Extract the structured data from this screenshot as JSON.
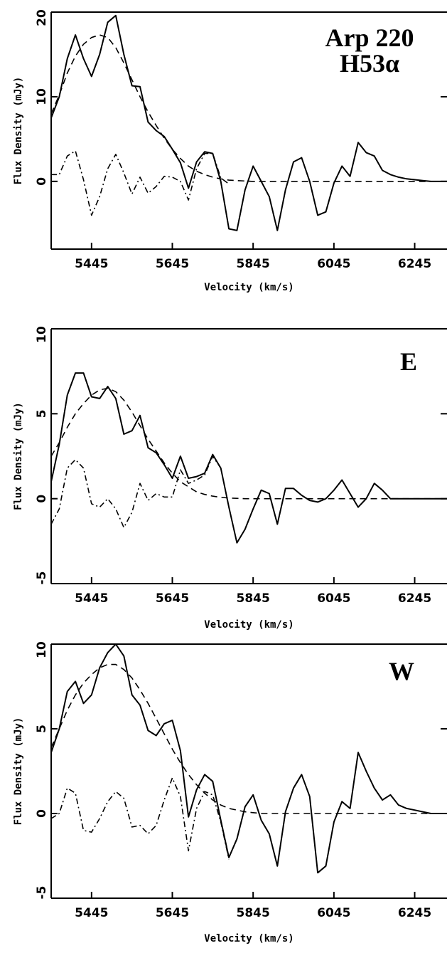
{
  "figure": {
    "xlabel": "Velocity (km/s)",
    "ylabel": "Flux Density (mJy)"
  },
  "chart_data": [
    {
      "type": "line",
      "title": "Arp 220\nH53α",
      "xlabel": "Velocity (km/s)",
      "ylabel": "Flux Density (mJy)",
      "xlim": [
        5345,
        6325
      ],
      "ylim": [
        -8,
        20
      ],
      "xticks": [
        5445,
        5645,
        5845,
        6045,
        6245
      ],
      "yticks": [
        0,
        10,
        20
      ],
      "grid": false,
      "series": [
        {
          "style": "solid",
          "x": [
            5345,
            5365,
            5385,
            5405,
            5425,
            5445,
            5465,
            5485,
            5505,
            5525,
            5545,
            5565,
            5585,
            5605,
            5625,
            5645,
            5665,
            5685,
            5705,
            5725,
            5745,
            5765,
            5785,
            5805,
            5825,
            5845,
            5865,
            5885,
            5905,
            5925,
            5945,
            5965,
            5985,
            6005,
            6025,
            6045,
            6065,
            6085,
            6105,
            6125,
            6145,
            6165,
            6185,
            6205,
            6225,
            6245,
            6265,
            6285,
            6305,
            6325
          ],
          "y": [
            7.5,
            10,
            14.5,
            17.3,
            14.5,
            12.4,
            15,
            18.8,
            19.6,
            15,
            11.3,
            11.2,
            7,
            6,
            5.3,
            3.8,
            2.2,
            -0.8,
            2.3,
            3.5,
            3.3,
            0,
            -5.6,
            -5.8,
            -1,
            1.8,
            0,
            -1.8,
            -5.8,
            -1,
            2.3,
            2.8,
            0,
            -4,
            -3.6,
            -0.2,
            1.8,
            0.6,
            4.6,
            3.4,
            3,
            1.3,
            0.8,
            0.5,
            0.3,
            0.2,
            0.1,
            0,
            0,
            0
          ]
        },
        {
          "style": "dashed",
          "x": [
            5345,
            5365,
            5385,
            5405,
            5425,
            5445,
            5465,
            5485,
            5505,
            5525,
            5545,
            5565,
            5585,
            5605,
            5625,
            5645,
            5665,
            5685,
            5705,
            5725,
            5745,
            5765,
            5785,
            5805,
            5825,
            5845,
            5865,
            5885,
            5905,
            5925,
            5945,
            5965,
            5985,
            6005,
            6025,
            6045,
            6065,
            6085,
            6105,
            6125,
            6145,
            6165,
            6185,
            6205,
            6225,
            6245,
            6265,
            6285,
            6305,
            6325
          ],
          "y": [
            8,
            10.2,
            12.8,
            14.8,
            16.2,
            17,
            17.3,
            17,
            15.8,
            14,
            12,
            10,
            8.2,
            6.6,
            5.1,
            3.8,
            2.7,
            1.8,
            1.2,
            0.8,
            0.5,
            0.3,
            0.15,
            0.1,
            0.05,
            0,
            0,
            0,
            0,
            0,
            0,
            0,
            0,
            0,
            0,
            0,
            0,
            0,
            0,
            0,
            0,
            0,
            0,
            0,
            0,
            0,
            0,
            0,
            0,
            0
          ]
        },
        {
          "style": "dashdot",
          "x": [
            5345,
            5365,
            5385,
            5405,
            5425,
            5445,
            5465,
            5485,
            5505,
            5525,
            5545,
            5565,
            5585,
            5605,
            5625,
            5645,
            5665,
            5685,
            5705,
            5725,
            5745,
            5765,
            5785
          ],
          "y": [
            0.8,
            0.8,
            3,
            3.6,
            0.2,
            -4,
            -1.8,
            1.5,
            3.2,
            1,
            -1.5,
            0.5,
            -1.4,
            -0.6,
            0.6,
            0.5,
            0,
            -2.2,
            1.5,
            3.3,
            3.3,
            0.4,
            -0.3
          ]
        }
      ]
    },
    {
      "type": "line",
      "title": "E",
      "xlabel": "Velocity (km/s)",
      "ylabel": "Flux Density (mJy)",
      "xlim": [
        5345,
        6325
      ],
      "ylim": [
        -5,
        10
      ],
      "xticks": [
        5445,
        5645,
        5845,
        6045,
        6245
      ],
      "yticks": [
        -5,
        0,
        5,
        10
      ],
      "grid": false,
      "series": [
        {
          "style": "solid",
          "x": [
            5345,
            5365,
            5385,
            5405,
            5425,
            5445,
            5465,
            5485,
            5505,
            5525,
            5545,
            5565,
            5585,
            5605,
            5625,
            5645,
            5665,
            5685,
            5705,
            5725,
            5745,
            5765,
            5785,
            5805,
            5825,
            5845,
            5865,
            5885,
            5905,
            5925,
            5945,
            5965,
            5985,
            6005,
            6025,
            6045,
            6065,
            6085,
            6105,
            6125,
            6145,
            6165,
            6185,
            6205,
            6225,
            6245,
            6265,
            6285,
            6305,
            6325
          ],
          "y": [
            1,
            3.2,
            6.1,
            7.4,
            7.4,
            6,
            5.9,
            6.6,
            5.9,
            3.8,
            4,
            4.9,
            3,
            2.7,
            2,
            1.2,
            2.5,
            1.2,
            1.3,
            1.5,
            2.6,
            1.8,
            -0.5,
            -2.6,
            -1.8,
            -0.6,
            0.5,
            0.3,
            -1.5,
            0.6,
            0.6,
            0.2,
            -0.1,
            -0.2,
            0,
            0.5,
            1.1,
            0.3,
            -0.5,
            0,
            0.9,
            0.5,
            0,
            0,
            0,
            0,
            0,
            0,
            0,
            0
          ]
        },
        {
          "style": "dashed",
          "x": [
            5345,
            5365,
            5385,
            5405,
            5425,
            5445,
            5465,
            5485,
            5505,
            5525,
            5545,
            5565,
            5585,
            5605,
            5625,
            5645,
            5665,
            5685,
            5705,
            5725,
            5745,
            5765,
            5785,
            5805,
            5825,
            5845,
            5865,
            5885,
            5905,
            5925,
            5945,
            5965,
            5985,
            6005,
            6025,
            6045,
            6065,
            6085,
            6105,
            6125,
            6145,
            6165,
            6185,
            6205,
            6225,
            6245,
            6265,
            6285,
            6305,
            6325
          ],
          "y": [
            2.5,
            3.3,
            4.2,
            5,
            5.6,
            6.1,
            6.4,
            6.5,
            6.3,
            5.8,
            5.1,
            4.3,
            3.5,
            2.8,
            2.1,
            1.5,
            1,
            0.7,
            0.4,
            0.25,
            0.15,
            0.08,
            0.04,
            0.02,
            0,
            0,
            0,
            0,
            0,
            0,
            0,
            0,
            0,
            0,
            0,
            0,
            0,
            0,
            0,
            0,
            0,
            0,
            0,
            0,
            0,
            0,
            0,
            0,
            0,
            0
          ]
        },
        {
          "style": "dashdot",
          "x": [
            5345,
            5365,
            5385,
            5405,
            5425,
            5445,
            5465,
            5485,
            5505,
            5525,
            5545,
            5565,
            5585,
            5605,
            5625,
            5645,
            5665,
            5685,
            5705,
            5725,
            5745,
            5765
          ],
          "y": [
            -1.5,
            -0.6,
            1.8,
            2.3,
            1.8,
            -0.3,
            -0.5,
            0,
            -0.6,
            -1.7,
            -0.8,
            0.9,
            -0.1,
            0.3,
            0.1,
            0.1,
            1.7,
            0.9,
            1.1,
            1.4,
            2.5,
            1.8
          ]
        }
      ]
    },
    {
      "type": "line",
      "title": "W",
      "xlabel": "Velocity (km/s)",
      "ylabel": "Flux Density (mJy)",
      "xlim": [
        5345,
        6325
      ],
      "ylim": [
        -5,
        10
      ],
      "xticks": [
        5445,
        5645,
        5845,
        6045,
        6245
      ],
      "yticks": [
        -5,
        0,
        5,
        10
      ],
      "grid": false,
      "series": [
        {
          "style": "solid",
          "x": [
            5345,
            5365,
            5385,
            5405,
            5425,
            5445,
            5465,
            5485,
            5505,
            5525,
            5545,
            5565,
            5585,
            5605,
            5625,
            5645,
            5665,
            5685,
            5705,
            5725,
            5745,
            5765,
            5785,
            5805,
            5825,
            5845,
            5865,
            5885,
            5905,
            5925,
            5945,
            5965,
            5985,
            6005,
            6025,
            6045,
            6065,
            6085,
            6105,
            6125,
            6145,
            6165,
            6185,
            6205,
            6225,
            6245,
            6265,
            6285,
            6305,
            6325
          ],
          "y": [
            3.6,
            5,
            7.2,
            7.8,
            6.5,
            7,
            8.6,
            9.5,
            10,
            9.3,
            7,
            6.4,
            4.9,
            4.6,
            5.3,
            5.5,
            3.7,
            -0.2,
            1.4,
            2.3,
            1.9,
            -0.4,
            -2.6,
            -1.5,
            0.4,
            1.1,
            -0.4,
            -1.2,
            -3.1,
            0.1,
            1.5,
            2.3,
            1,
            -3.5,
            -3.1,
            -0.5,
            0.7,
            0.3,
            3.6,
            2.5,
            1.5,
            0.8,
            1.1,
            0.5,
            0.3,
            0.2,
            0.1,
            0,
            0,
            0
          ]
        },
        {
          "style": "dashed",
          "x": [
            5345,
            5365,
            5385,
            5405,
            5425,
            5445,
            5465,
            5485,
            5505,
            5525,
            5545,
            5565,
            5585,
            5605,
            5625,
            5645,
            5665,
            5685,
            5705,
            5725,
            5745,
            5765,
            5785,
            5805,
            5825,
            5845,
            5865,
            5885,
            5905,
            5925,
            5945,
            5965,
            5985,
            6005,
            6025,
            6045,
            6065,
            6085,
            6105,
            6125,
            6145,
            6165,
            6185,
            6205,
            6225,
            6245,
            6265,
            6285,
            6305,
            6325
          ],
          "y": [
            3.9,
            5,
            6.1,
            7,
            7.7,
            8.2,
            8.6,
            8.8,
            8.8,
            8.5,
            8,
            7.3,
            6.5,
            5.6,
            4.7,
            3.8,
            3,
            2.3,
            1.7,
            1.2,
            0.8,
            0.5,
            0.3,
            0.2,
            0.1,
            0.05,
            0,
            0,
            0,
            0,
            0,
            0,
            0,
            0,
            0,
            0,
            0,
            0,
            0,
            0,
            0,
            0,
            0,
            0,
            0,
            0,
            0,
            0,
            0,
            0
          ]
        },
        {
          "style": "dashdot",
          "x": [
            5345,
            5365,
            5385,
            5405,
            5425,
            5445,
            5465,
            5485,
            5505,
            5525,
            5545,
            5565,
            5585,
            5605,
            5625,
            5645,
            5665,
            5685,
            5705,
            5725,
            5745,
            5765,
            5785
          ],
          "y": [
            -0.3,
            0,
            1.5,
            1.2,
            -1,
            -1.1,
            -0.3,
            0.7,
            1.3,
            0.9,
            -0.8,
            -0.7,
            -1.2,
            -0.7,
            0.8,
            2.1,
            1,
            -2.2,
            0.3,
            1.3,
            1.1,
            -0.5,
            -2.7
          ]
        }
      ]
    }
  ]
}
